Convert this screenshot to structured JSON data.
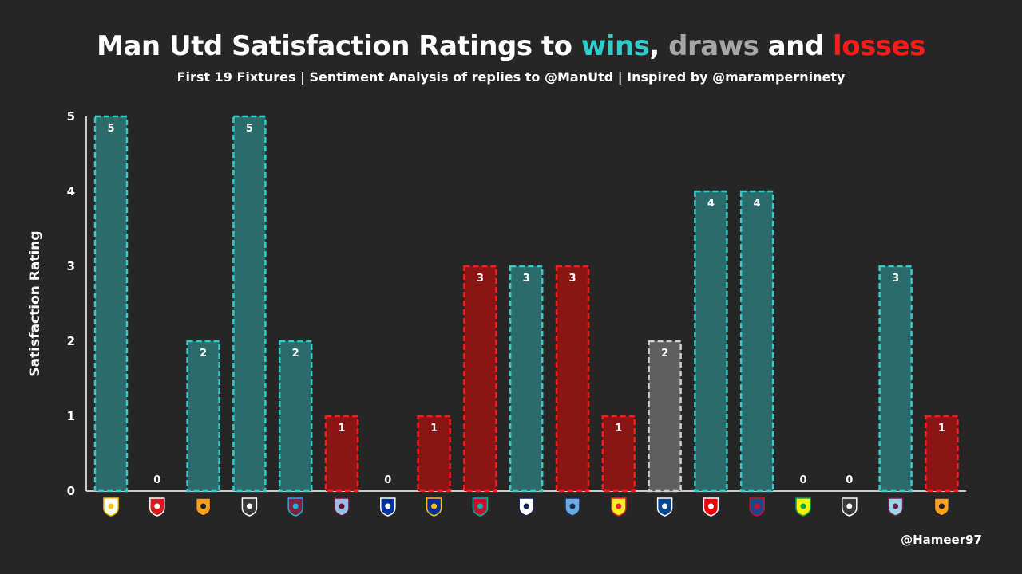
{
  "title": {
    "part1": "Man Utd Satisfaction Ratings to ",
    "wins": "wins",
    "sep1": ", ",
    "draws": "draws",
    "sep2": " and ",
    "losses": "losses"
  },
  "subtitle": "First 19 Fixtures | Sentiment Analysis of replies to @ManUtd  | Inspired by @maramperninety",
  "credit": "@Hameer97",
  "colors": {
    "win_fill": "#2b6b6b",
    "win_stroke": "#33cccc",
    "draw_fill": "#5f5f5f",
    "draw_stroke": "#d0d0d0",
    "loss_fill": "#8b1414",
    "loss_stroke": "#ff1a1a",
    "title_wins": "#33cccc",
    "title_draws": "#a6a6a6",
    "title_losses": "#ff1a1a",
    "axis": "#ffffff"
  },
  "chart_data": {
    "type": "bar",
    "title": "Man Utd Satisfaction Ratings to wins, draws and losses",
    "subtitle": "First 19 Fixtures | Sentiment Analysis of replies to @ManUtd  | Inspired by @maramperninety",
    "xlabel": "",
    "ylabel": "Satisfaction Rating",
    "ylim": [
      0,
      5
    ],
    "yticks": [
      0,
      1,
      2,
      3,
      4,
      5
    ],
    "grid": false,
    "legend": "none (encoded in title colors)",
    "categories": [
      "leeds-badge",
      "southampton-badge",
      "wolves-badge",
      "newcastle-badge",
      "west-ham-badge",
      "aston-villa-badge",
      "everton-badge",
      "leicester-badge",
      "liverpool-badge",
      "tottenham-badge",
      "man-city-badge",
      "watford-badge",
      "chelsea-badge",
      "arsenal-badge",
      "crystal-palace-badge",
      "norwich-badge",
      "newcastle-badge",
      "burnley-badge",
      "wolves-badge"
    ],
    "values": [
      5,
      0,
      2,
      5,
      2,
      1,
      0,
      1,
      3,
      3,
      3,
      1,
      2,
      4,
      4,
      0,
      0,
      3,
      1
    ],
    "results": [
      "win",
      "loss",
      "win",
      "win",
      "win",
      "loss",
      "loss",
      "loss",
      "loss",
      "win",
      "loss",
      "loss",
      "draw",
      "win",
      "win",
      "loss",
      "loss",
      "win",
      "loss"
    ]
  }
}
